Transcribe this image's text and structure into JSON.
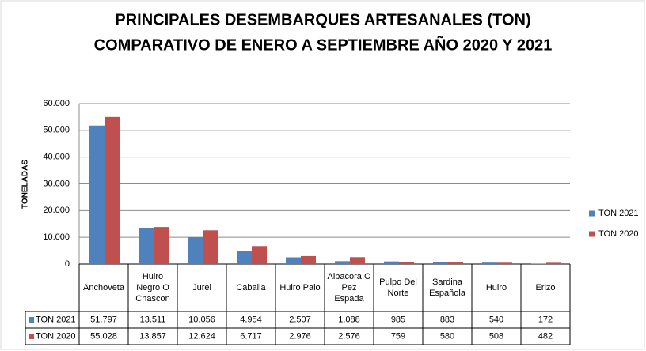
{
  "chart_data": {
    "type": "bar",
    "title": "PRINCIPALES DESEMBARQUES ARTESANALES (TON)",
    "subtitle": "COMPARATIVO DE ENERO A SEPTIEMBRE AÑO 2020 Y 2021",
    "y_label": "TONELADAS",
    "categories": [
      "Anchoveta",
      "Huiro Negro O Chascon",
      "Jurel",
      "Caballa",
      "Huiro Palo",
      "Albacora O Pez Espada",
      "Pulpo Del Norte",
      "Sardina Española",
      "Huiro",
      "Erizo"
    ],
    "series": [
      {
        "name": "TON 2021",
        "color": "#4f81bd",
        "values": [
          51797,
          13511,
          10056,
          4954,
          2507,
          1088,
          985,
          883,
          540,
          172
        ],
        "value_labels": [
          "51.797",
          "13.511",
          "10.056",
          "4.954",
          "2.507",
          "1.088",
          "985",
          "883",
          "540",
          "172"
        ]
      },
      {
        "name": "TON 2020",
        "color": "#c0504d",
        "values": [
          55028,
          13857,
          12624,
          6717,
          2976,
          2576,
          759,
          580,
          508,
          482
        ],
        "value_labels": [
          "55.028",
          "13.857",
          "12.624",
          "6.717",
          "2.976",
          "2.576",
          "759",
          "580",
          "508",
          "482"
        ]
      }
    ],
    "ylim": [
      0,
      60000
    ],
    "yticks": [
      0,
      {
        "value": 10000,
        "label": "10.000"
      },
      {
        "value": 20000,
        "label": "20.000"
      },
      {
        "value": 30000,
        "label": "30.000"
      },
      {
        "value": 40000,
        "label": "40.000"
      },
      {
        "value": 50000,
        "label": "50.000"
      },
      {
        "value": 60000,
        "label": "60.000"
      }
    ],
    "grid": true,
    "legend": "right"
  }
}
